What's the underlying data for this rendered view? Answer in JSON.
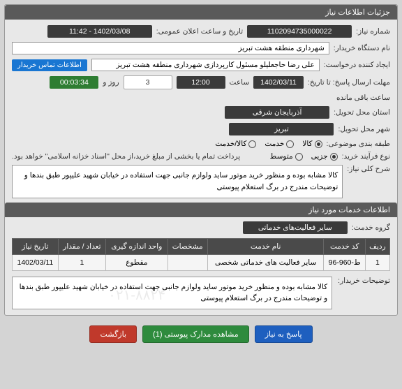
{
  "header": {
    "title": "جزئیات اطلاعات نیاز"
  },
  "info": {
    "need_no_label": "شماره نیاز:",
    "need_no": "1102094735000022",
    "announce_label": "تاریخ و ساعت اعلان عمومی:",
    "announce_value": "1402/03/08 - 11:42",
    "buyer_org_label": "نام دستگاه خریدار:",
    "buyer_org": "شهرداری منطقه هشت تبریز",
    "creator_label": "ایجاد کننده درخواست:",
    "creator": "علی رضا حاجعلیلو مسئول کارپردازی شهرداری منطقه هشت تبریز",
    "contact_btn": "اطلاعات تماس خریدار",
    "deadline_label": "مهلت ارسال پاسخ: تا تاریخ:",
    "deadline_date": "1402/03/11",
    "deadline_time_label": "ساعت",
    "deadline_time": "12:00",
    "days_label": "روز و",
    "days": "3",
    "remain_label": "ساعت باقی مانده",
    "remain": "00:03:34",
    "province_label": "استان محل تحویل:",
    "province": "آذربایجان شرقی",
    "city_label": "شهر محل تحویل:",
    "city": "تبریز",
    "category_label": "طبقه بندی موضوعی:",
    "cat_opts": {
      "goods": "کالا",
      "service": "خدمت",
      "both": "کالا/خدمت"
    },
    "process_label": "نوع فرآیند خرید:",
    "proc_opts": {
      "minor": "جزیی",
      "medium": "متوسط"
    },
    "process_note": "پرداخت تمام یا بخشی از مبلغ خرید،از محل \"اسناد خزانه اسلامی\" خواهد بود."
  },
  "desc": {
    "label": "شرح کلی نیاز:",
    "text": "کالا مشابه بوده و منظور خرید موتور ساید ولوازم جانبی جهت استفاده در خیابان شهید علیپور طبق بندها و توضیحات مندرج در برگ استعلام پیوستی"
  },
  "services": {
    "header": "اطلاعات خدمات مورد نیاز",
    "group_label": "گروه خدمت:",
    "group_value": "سایر فعالیت‌های خدماتی",
    "cols": {
      "row": "ردیف",
      "code": "کد خدمت",
      "name": "نام خدمت",
      "characteristics": "مشخصات",
      "unit": "واحد اندازه گیری",
      "qty": "تعداد / مقدار",
      "date": "تاریخ نیاز"
    },
    "rows": [
      {
        "row": "1",
        "code": "ط-960-96",
        "name": "سایر فعالیت های خدماتی شخصی",
        "characteristics": "",
        "unit": "مقطوع",
        "qty": "1",
        "date": "1402/03/11"
      }
    ]
  },
  "buyer_notes": {
    "label": "توضیحات خریدار:",
    "text": "کالا مشابه بوده و منظور خرید موتور ساید ولوازم جانبی جهت استفاده در خیابان شهید علیپور طبق بندها و توضیحات مندرج در برگ استعلام پیوستی",
    "watermark": "۰۲۱-۸۸۲۴"
  },
  "actions": {
    "respond": "پاسخ به نیاز",
    "attachments": "مشاهده مدارک پیوستی (1)",
    "back": "بازگشت"
  },
  "colors": {
    "header_bg": "#5a5a5a",
    "dark_box": "#3a3a3a",
    "green_box": "#2e7d32",
    "link_blue": "#1976d2",
    "btn_blue": "#1e5fbf",
    "btn_green": "#2e8b3d",
    "btn_red": "#c0392b"
  }
}
